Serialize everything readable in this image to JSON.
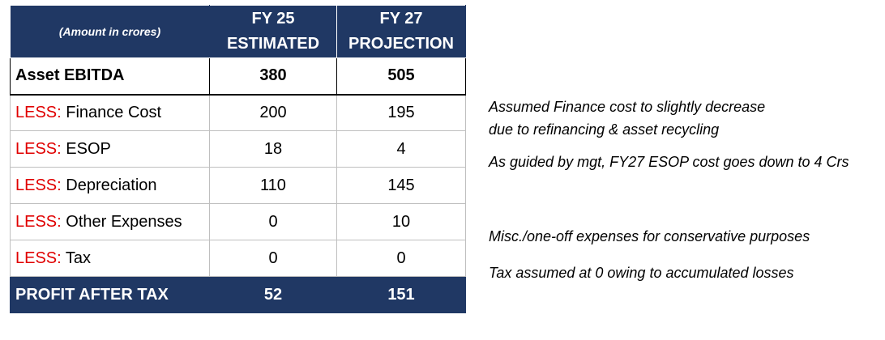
{
  "header": {
    "units_label": "(Amount in crores)",
    "fy25_line1": "FY 25",
    "fy25_line2": "ESTIMATED",
    "fy27_line1": "FY 27",
    "fy27_line2": "PROJECTION"
  },
  "rows": [
    {
      "prefix": "",
      "label": "Asset EBITDA",
      "fy25": "380",
      "fy27": "505"
    },
    {
      "prefix": "LESS:",
      "label": " Finance Cost",
      "fy25": "200",
      "fy27": "195"
    },
    {
      "prefix": "LESS:",
      "label": " ESOP",
      "fy25": "18",
      "fy27": "4"
    },
    {
      "prefix": "LESS:",
      "label": " Depreciation",
      "fy25": "110",
      "fy27": "145"
    },
    {
      "prefix": "LESS:",
      "label": " Other Expenses",
      "fy25": "0",
      "fy27": "10"
    },
    {
      "prefix": "LESS:",
      "label": " Tax",
      "fy25": "0",
      "fy27": "0"
    }
  ],
  "total": {
    "label": "PROFIT AFTER TAX",
    "fy25": "52",
    "fy27": "151"
  },
  "notes": {
    "finance_line1": "Assumed Finance cost to slightly decrease",
    "finance_line2": "due to refinancing & asset recycling",
    "esop": "As guided by mgt, FY27 ESOP cost goes down to 4 Crs",
    "other": "Misc./one-off expenses for conservative purposes",
    "tax": "Tax assumed at 0 owing to accumulated losses"
  },
  "colors": {
    "header_bg": "#203864",
    "less_prefix": "#e00000"
  }
}
